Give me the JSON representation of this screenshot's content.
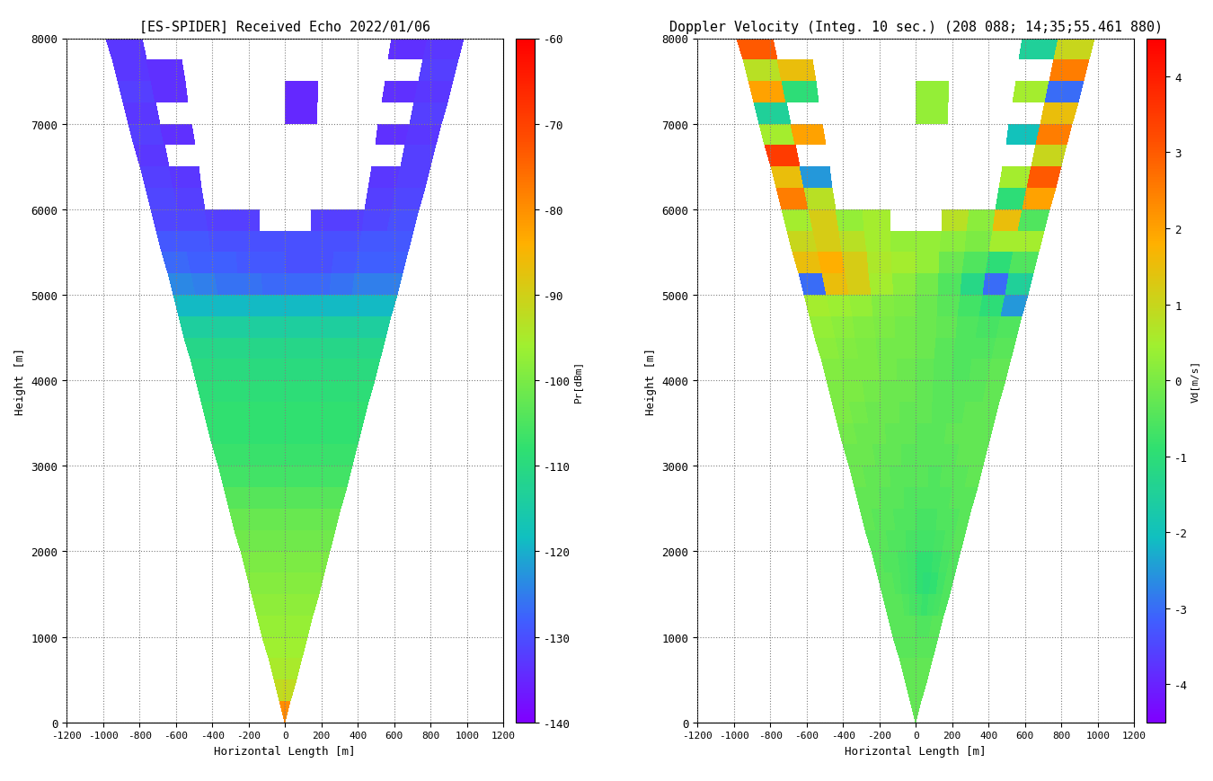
{
  "chart_data": [
    {
      "type": "heatmap",
      "title": "[ES-SPIDER] Received Echo 2022/01/06",
      "x_label": "Horizontal Length [m]",
      "y_label": "Height [m]",
      "xlim": [
        -1200,
        1200
      ],
      "xticks": [
        -1200,
        -1000,
        -800,
        -600,
        -400,
        -200,
        0,
        200,
        400,
        600,
        800,
        1000,
        1200
      ],
      "ylim": [
        0,
        8000
      ],
      "yticks": [
        0,
        1000,
        2000,
        3000,
        4000,
        5000,
        6000,
        7000,
        8000
      ],
      "grid": true,
      "beam_edges_deg": [
        -7.0,
        -5.6,
        -4.2,
        -2.8,
        -1.4,
        0.0,
        1.4,
        2.8,
        4.2,
        5.6,
        7.0
      ],
      "height_edges": [
        0,
        250,
        500,
        750,
        1000,
        1250,
        1500,
        1750,
        2000,
        2250,
        2500,
        2750,
        3000,
        3250,
        3500,
        3750,
        4000,
        4250,
        4500,
        4750,
        5000,
        5250,
        5500,
        5750,
        6000,
        6250,
        6500,
        6750,
        7000,
        7250,
        7500,
        7750,
        8000
      ],
      "cells": [
        [
          -80,
          -80,
          -80,
          -80,
          -78,
          -78,
          -80,
          -80,
          -80,
          -80
        ],
        [
          -92,
          -92,
          -92,
          -92,
          -91,
          -91,
          -92,
          -92,
          -92,
          -92
        ],
        [
          -95,
          -95,
          -95,
          -95,
          -95,
          -95,
          -95,
          -95,
          -95,
          -95
        ],
        [
          -96,
          -96,
          -96,
          -96,
          -96,
          -96,
          -96,
          -96,
          -96,
          -96
        ],
        [
          -97,
          -97,
          -97,
          -97,
          -97,
          -97,
          -97,
          -97,
          -97,
          -97
        ],
        [
          -98,
          -98,
          -98,
          -98,
          -98,
          -98,
          -98,
          -98,
          -98,
          -98
        ],
        [
          -99,
          -99,
          -99,
          -99,
          -99,
          -99,
          -99,
          -99,
          -99,
          -99
        ],
        [
          -100,
          -100,
          -100,
          -100,
          -100,
          -100,
          -100,
          -100,
          -100,
          -100
        ],
        [
          -101,
          -101,
          -101,
          -101,
          -101,
          -101,
          -101,
          -101,
          -101,
          -101
        ],
        [
          -102,
          -102,
          -102,
          -102,
          -102,
          -102,
          -102,
          -102,
          -102,
          -102
        ],
        [
          -104,
          -104,
          -104,
          -104,
          -104,
          -104,
          -104,
          -104,
          -104,
          -104
        ],
        [
          -106,
          -106,
          -106,
          -106,
          -106,
          -106,
          -106,
          -106,
          -106,
          -106
        ],
        [
          -107,
          -107,
          -107,
          -107,
          -107,
          -107,
          -107,
          -107,
          -107,
          -107
        ],
        [
          -108,
          -108,
          -108,
          -108,
          -108,
          -108,
          -108,
          -108,
          -108,
          -108
        ],
        [
          -108,
          -108,
          -108,
          -108,
          -108,
          -108,
          -108,
          -108,
          -108,
          -108
        ],
        [
          -109,
          -109,
          -109,
          -109,
          -109,
          -109,
          -109,
          -109,
          -109,
          -109
        ],
        [
          -110,
          -110,
          -110,
          -110,
          -110,
          -110,
          -110,
          -110,
          -110,
          -110
        ],
        [
          -111,
          -111,
          -111,
          -111,
          -111,
          -111,
          -111,
          -111,
          -111,
          -111
        ],
        [
          -114,
          -114,
          -114,
          -114,
          -114,
          -114,
          -114,
          -114,
          -114,
          -114
        ],
        [
          -119,
          -119,
          -119,
          -119,
          -119,
          -119,
          -119,
          -119,
          -119,
          -119
        ],
        [
          -124,
          -125,
          -126,
          -126,
          -127,
          -127,
          -127,
          -126,
          -125,
          -125
        ],
        [
          -127,
          -128,
          -128,
          -129,
          -129,
          -130,
          -130,
          -129,
          -128,
          -128
        ],
        [
          -129,
          -129,
          -130,
          -130,
          -130,
          -130,
          -130,
          -130,
          -129,
          -129
        ],
        [
          -131,
          -131,
          -132,
          -132,
          null,
          null,
          -132,
          -132,
          -131,
          -130
        ],
        [
          -131,
          -132,
          null,
          null,
          null,
          null,
          null,
          null,
          -132,
          -131
        ],
        [
          -132,
          -133,
          null,
          null,
          null,
          null,
          null,
          null,
          -133,
          -132
        ],
        [
          -133,
          null,
          null,
          null,
          null,
          null,
          null,
          null,
          null,
          -132
        ],
        [
          -132,
          -134,
          null,
          null,
          null,
          null,
          null,
          null,
          -134,
          -133
        ],
        [
          -133,
          null,
          null,
          null,
          null,
          -135,
          null,
          null,
          null,
          -132
        ],
        [
          -132,
          -134,
          null,
          null,
          null,
          -135,
          null,
          null,
          -134,
          -133
        ],
        [
          -133,
          -134,
          null,
          null,
          null,
          null,
          null,
          null,
          null,
          -132
        ],
        [
          -133,
          null,
          null,
          null,
          null,
          null,
          null,
          null,
          -134,
          -133
        ]
      ],
      "colorbar": {
        "label": "Pr[dBm]",
        "range": [
          -140,
          -60
        ],
        "ticks": [
          -140,
          -130,
          -120,
          -110,
          -100,
          -90,
          -80,
          -70,
          -60
        ]
      }
    },
    {
      "type": "heatmap",
      "title": "Doppler Velocity (Integ. 10 sec.) (208 088; 14;35;55.461 880)",
      "x_label": "Horizontal Length [m]",
      "y_label": "Height [m]",
      "xlim": [
        -1200,
        1200
      ],
      "xticks": [
        -1200,
        -1000,
        -800,
        -600,
        -400,
        -200,
        0,
        200,
        400,
        600,
        800,
        1000,
        1200
      ],
      "ylim": [
        0,
        8000
      ],
      "yticks": [
        0,
        1000,
        2000,
        3000,
        4000,
        5000,
        6000,
        7000,
        8000
      ],
      "grid": true,
      "beam_edges_deg": [
        -7.0,
        -5.6,
        -4.2,
        -2.8,
        -1.4,
        0.0,
        1.4,
        2.8,
        4.2,
        5.6,
        7.0
      ],
      "height_edges": [
        0,
        250,
        500,
        750,
        1000,
        1250,
        1500,
        1750,
        2000,
        2250,
        2500,
        2750,
        3000,
        3250,
        3500,
        3750,
        4000,
        4250,
        4500,
        4750,
        5000,
        5250,
        5500,
        5750,
        6000,
        6250,
        6500,
        6750,
        7000,
        7250,
        7500,
        7750,
        8000
      ],
      "cells": [
        [
          -0.3,
          -0.3,
          -0.3,
          -0.3,
          -0.3,
          -0.3,
          -0.3,
          -0.3,
          -0.3,
          -0.3
        ],
        [
          -0.3,
          -0.3,
          -0.3,
          -0.3,
          -0.3,
          -0.3,
          -0.3,
          -0.3,
          -0.3,
          -0.3
        ],
        [
          -0.3,
          -0.3,
          -0.3,
          -0.3,
          -0.3,
          -0.3,
          -0.3,
          -0.3,
          -0.3,
          -0.3
        ],
        [
          -0.4,
          -0.4,
          -0.4,
          -0.4,
          -0.4,
          -0.4,
          -0.4,
          -0.4,
          -0.4,
          -0.4
        ],
        [
          -0.4,
          -0.4,
          -0.4,
          -0.4,
          -0.4,
          -0.5,
          -0.5,
          -0.5,
          -0.4,
          -0.4
        ],
        [
          -0.4,
          -0.4,
          -0.4,
          -0.5,
          -0.6,
          -0.7,
          -0.8,
          -0.7,
          -0.6,
          -0.5
        ],
        [
          -0.4,
          -0.4,
          -0.5,
          -0.6,
          -0.7,
          -0.9,
          -1.0,
          -0.9,
          -0.7,
          -0.5
        ],
        [
          -0.4,
          -0.5,
          -0.5,
          -0.6,
          -0.7,
          -0.9,
          -0.9,
          -0.8,
          -0.6,
          -0.5
        ],
        [
          -0.4,
          -0.4,
          -0.5,
          -0.5,
          -0.6,
          -0.7,
          -0.7,
          -0.6,
          -0.5,
          -0.4
        ],
        [
          -0.3,
          -0.4,
          -0.4,
          -0.5,
          -0.5,
          -0.6,
          -0.6,
          -0.5,
          -0.5,
          -0.4
        ],
        [
          -0.3,
          -0.3,
          -0.4,
          -0.4,
          -0.5,
          -0.5,
          -0.5,
          -0.5,
          -0.4,
          -0.4
        ],
        [
          -0.2,
          -0.3,
          -0.3,
          -0.4,
          -0.4,
          -0.4,
          -0.5,
          -0.4,
          -0.4,
          -0.3
        ],
        [
          -0.2,
          -0.2,
          -0.3,
          -0.3,
          -0.4,
          -0.4,
          -0.4,
          -0.4,
          -0.3,
          -0.3
        ],
        [
          -0.1,
          -0.2,
          -0.2,
          -0.3,
          -0.3,
          -0.4,
          -0.4,
          -0.3,
          -0.3,
          -0.3
        ],
        [
          0.0,
          -0.1,
          -0.2,
          -0.2,
          -0.3,
          -0.3,
          -0.4,
          -0.4,
          -0.3,
          -0.3
        ],
        [
          0.0,
          0.0,
          -0.1,
          -0.2,
          -0.2,
          -0.3,
          -0.4,
          -0.4,
          -0.4,
          -0.3
        ],
        [
          0.1,
          0.0,
          0.0,
          -0.1,
          -0.2,
          -0.3,
          -0.4,
          -0.5,
          -0.4,
          -0.3
        ],
        [
          0.2,
          0.1,
          0.0,
          -0.1,
          -0.1,
          -0.2,
          -0.4,
          -0.5,
          -0.5,
          -0.4
        ],
        [
          0.3,
          0.2,
          0.1,
          0.0,
          -0.1,
          -0.2,
          -0.3,
          -0.5,
          -0.6,
          -0.5
        ],
        [
          0.5,
          0.4,
          0.3,
          0.1,
          0.0,
          -0.2,
          -0.4,
          -0.7,
          -1.0,
          -2.5
        ],
        [
          -3.0,
          1.5,
          1.2,
          0.5,
          0.2,
          -0.1,
          -0.5,
          -1.2,
          -3.0,
          -1.5
        ],
        [
          1.5,
          1.8,
          1.2,
          0.6,
          0.5,
          0.3,
          -0.2,
          -0.5,
          -1.0,
          -0.5
        ],
        [
          1.0,
          1.2,
          0.8,
          0.5,
          0.3,
          0.3,
          0.2,
          0.0,
          0.5,
          0.5
        ],
        [
          0.5,
          1.2,
          0.3,
          0.5,
          null,
          null,
          0.8,
          0.2,
          1.5,
          -0.5
        ],
        [
          2.5,
          0.8,
          null,
          null,
          null,
          null,
          null,
          null,
          -1.0,
          2.0
        ],
        [
          1.5,
          -2.5,
          null,
          null,
          null,
          null,
          null,
          null,
          0.5,
          3.0
        ],
        [
          3.5,
          null,
          null,
          null,
          null,
          null,
          null,
          null,
          null,
          1.0
        ],
        [
          0.5,
          2.0,
          null,
          null,
          null,
          null,
          null,
          null,
          -2.0,
          2.5
        ],
        [
          -1.5,
          null,
          null,
          null,
          null,
          0.3,
          null,
          null,
          null,
          1.5
        ],
        [
          2.0,
          -1.0,
          null,
          null,
          null,
          0.3,
          null,
          null,
          0.5,
          -3.0
        ],
        [
          0.8,
          1.5,
          null,
          null,
          null,
          null,
          null,
          null,
          null,
          2.5
        ],
        [
          3.0,
          null,
          null,
          null,
          null,
          null,
          null,
          null,
          -1.5,
          1.0
        ]
      ],
      "colorbar": {
        "label": "Vd[m/s]",
        "range": [
          -4.5,
          4.5
        ],
        "ticks": [
          -4,
          -3,
          -2,
          -1,
          0,
          1,
          2,
          3,
          4
        ]
      }
    }
  ]
}
